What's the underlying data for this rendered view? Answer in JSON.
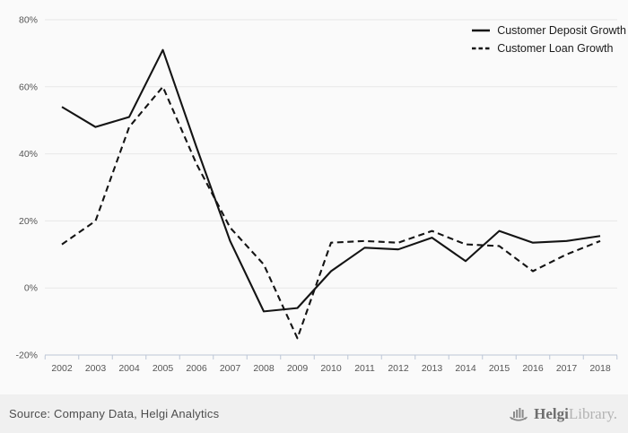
{
  "chart_data": {
    "type": "line",
    "title": "",
    "x": [
      "2002",
      "2003",
      "2004",
      "2005",
      "2006",
      "2007",
      "2008",
      "2009",
      "2010",
      "2011",
      "2012",
      "2013",
      "2014",
      "2015",
      "2016",
      "2017",
      "2018"
    ],
    "series": [
      {
        "name": "Customer Deposit Growth",
        "style": "solid",
        "values": [
          54,
          48,
          51,
          71,
          42,
          14,
          -7,
          -6,
          5,
          12,
          11.5,
          15,
          8,
          17,
          13.5,
          14,
          15.5
        ]
      },
      {
        "name": "Customer Loan Growth",
        "style": "dashed",
        "values": [
          13,
          20,
          48,
          60,
          37,
          18,
          7,
          -15,
          13.5,
          14,
          13.5,
          17,
          13,
          12.5,
          5,
          10,
          14
        ]
      }
    ],
    "ylim": [
      -20,
      80
    ],
    "yticks": [
      80,
      60,
      40,
      20,
      0,
      -20
    ],
    "ytick_suffix": "%",
    "grid": true,
    "legend_position": "top-right"
  },
  "footer": {
    "source": "Source: Company Data, Helgi Analytics",
    "logo": {
      "name": "Helgi",
      "suffix": "Library."
    }
  },
  "colors": {
    "line": "#141414",
    "grid": "#e7e7e7",
    "axis": "#bcc6d6",
    "tick_label": "#555555",
    "legend_text": "#1b1b1b",
    "footer_text": "#4d4d4d",
    "logo_dark": "#6e6e6e",
    "logo_light": "#b3b3b3",
    "background": "#fafafa",
    "footer_background": "#f0f0f0"
  }
}
